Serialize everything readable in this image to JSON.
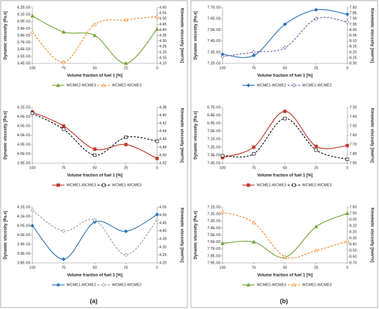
{
  "panel_labels": [
    "(a)",
    "(b)"
  ],
  "chart_data": [
    {
      "type": "line",
      "xlabel": "Volume fraction of fuel 1 [%]",
      "ylabel": "Dynamic viscosity [Pa.s]",
      "y2label": "Kinematic viscosity [mm²/s]",
      "categories": [
        "100",
        "75",
        "50",
        "25",
        "0"
      ],
      "ylim": [
        0.0034,
        0.0042
      ],
      "yticks": [
        {
          "value": 0.0034,
          "label": "3.4E-03"
        },
        {
          "value": 0.0035,
          "label": "3.5E-03"
        },
        {
          "value": 0.0036,
          "label": "3.6E-03"
        },
        {
          "value": 0.0037,
          "label": "3.7E-03"
        },
        {
          "value": 0.0038,
          "label": "3.8E-03"
        },
        {
          "value": 0.0039,
          "label": "3.9E-03"
        },
        {
          "value": 0.004,
          "label": "4.0E-03"
        },
        {
          "value": 0.0041,
          "label": "4.1E-03"
        },
        {
          "value": 0.0042,
          "label": "4.2E-03"
        }
      ],
      "y2lim": [
        4.1,
        4.6
      ],
      "y2ticks": [
        {
          "value": 4.1,
          "label": "4.10"
        },
        4.15,
        {
          "value": 4.2,
          "label": "4.20"
        },
        4.25,
        {
          "value": 4.3,
          "label": "4.30"
        },
        4.35,
        {
          "value": 4.4,
          "label": "4.40"
        },
        4.45,
        {
          "value": 4.5,
          "label": "4.50"
        },
        4.55,
        {
          "value": 4.6,
          "label": "4.60"
        }
      ],
      "series": [
        {
          "name": "WCME2-WCME3",
          "color": "#77a33a",
          "dash": false,
          "marker": "triangle",
          "filled": true,
          "values": [
            0.00408,
            0.00385,
            0.0038,
            0.0034,
            0.00389
          ]
        },
        {
          "name": "WCME2-WCME3",
          "color": "#f08a24",
          "dash": true,
          "marker": "triangle",
          "filled": false,
          "axis": "y2",
          "values": [
            4.38,
            4.11,
            4.45,
            4.49,
            4.52
          ]
        }
      ]
    },
    {
      "type": "line",
      "xlabel": "Volume fraction of fuel 1 [%]",
      "ylabel": "Dynamic viscosity [Pa.s]",
      "y2label": "Kinematic viscosity [mm²/s]",
      "categories": [
        "100",
        "75",
        "50",
        "25",
        "0"
      ],
      "ylim": [
        0.00394,
        0.00406
      ],
      "yticks": [
        {
          "value": 0.00394,
          "label": "3.9E-03"
        },
        {
          "value": 0.00396,
          "label": "4.0E-03"
        },
        {
          "value": 0.00398,
          "label": "4.0E-03"
        },
        {
          "value": 0.004,
          "label": "4.0E-03"
        },
        {
          "value": 0.00402,
          "label": "4.0E-03"
        },
        {
          "value": 0.00404,
          "label": "4.0E-03"
        },
        {
          "value": 0.00406,
          "label": "4.1E-03"
        }
      ],
      "y2lim": [
        4.52,
        4.38
      ],
      "y2ticks": [
        4.38,
        {
          "value": 4.4,
          "label": "4.40"
        },
        4.42,
        4.44,
        4.46,
        4.48,
        {
          "value": 4.5,
          "label": "4.50"
        },
        4.52
      ],
      "series": [
        {
          "name": "WCME1-WCME3",
          "color": "#c0392b",
          "dash": false,
          "marker": "square",
          "filled": true,
          "values": [
            0.00405,
            0.00402,
            0.00397,
            0.00398,
            0.00395
          ]
        },
        {
          "name": "WCME1-WCME3",
          "color": "#111111",
          "dash": true,
          "marker": "square",
          "filled": false,
          "axis": "y2",
          "values": [
            4.395,
            4.435,
            4.5,
            4.455,
            4.465
          ]
        }
      ]
    },
    {
      "type": "line",
      "xlabel": "Volume fraction of fuel 1 [%]",
      "ylabel": "Dynamic viscosity [Pa.s]",
      "y2label": "Kinematic viscosity [mm²/s]",
      "categories": [
        "100",
        "75",
        "50",
        "25",
        "0"
      ],
      "ylim": [
        0.00384,
        0.00414
      ],
      "yticks": [
        {
          "value": 0.00384,
          "label": "3.8E-03"
        },
        {
          "value": 0.00389,
          "label": "3.9E-03"
        },
        {
          "value": 0.00394,
          "label": "3.9E-03"
        },
        {
          "value": 0.00399,
          "label": "4.0E-03"
        },
        {
          "value": 0.00404,
          "label": "4.0E-03"
        },
        {
          "value": 0.00409,
          "label": "4.1E-03"
        },
        {
          "value": 0.00414,
          "label": "4.1E-03"
        }
      ],
      "y2lim": [
        4.2,
        4.55
      ],
      "y2ticks": [
        {
          "value": 4.2,
          "label": "4.20"
        },
        4.25,
        {
          "value": 4.3,
          "label": "4.30"
        },
        4.35,
        {
          "value": 4.4,
          "label": "4.40"
        },
        4.45,
        {
          "value": 4.5,
          "label": "4.50"
        },
        4.55
      ],
      "series": [
        {
          "name": "WCME1-WCME2",
          "color": "#2e75b6",
          "dash": false,
          "marker": "diamond",
          "filled": true,
          "values": [
            0.00404,
            0.00386,
            0.00406,
            0.00401,
            0.0041
          ]
        },
        {
          "name": "WCME1-WCME2",
          "color": "#999999",
          "dash": true,
          "marker": "diamond",
          "filled": false,
          "axis": "y2",
          "values": [
            4.53,
            4.4,
            4.47,
            4.25,
            4.47
          ]
        }
      ]
    },
    {
      "type": "line",
      "xlabel": "Volume fraction of fuel 1 [%]",
      "ylabel": "Dynamic viscosity [Pa.s]",
      "y2label": "Kinematic viscosity [mm²/s]",
      "categories": [
        "100",
        "75",
        "50",
        "25",
        "0"
      ],
      "ylim": [
        0.0072,
        0.0077
      ],
      "yticks": [
        {
          "value": 0.0072,
          "label": "7.2E-03"
        },
        {
          "value": 0.0073,
          "label": "7.3E-03"
        },
        {
          "value": 0.0074,
          "label": "7.4E-03"
        },
        {
          "value": 0.0075,
          "label": "7.5E-03"
        },
        {
          "value": 0.0076,
          "label": "7.6E-03"
        },
        {
          "value": 0.0077,
          "label": "7.7E-03"
        }
      ],
      "y2lim": [
        8.3,
        7.8
      ],
      "y2ticks": [
        {
          "value": 7.8,
          "label": "7.80"
        },
        7.85,
        {
          "value": 7.9,
          "label": "7.90"
        },
        7.95,
        {
          "value": 8,
          "label": "8.00"
        },
        8.05,
        {
          "value": 8.1,
          "label": "8.10"
        },
        8.15,
        {
          "value": 8.2,
          "label": "8.20"
        },
        8.25,
        {
          "value": 8.3,
          "label": "8.30"
        }
      ],
      "series": [
        {
          "name": "WCME1-WCME2",
          "color": "#2e75b6",
          "dash": false,
          "marker": "diamond",
          "filled": true,
          "values": [
            0.00728,
            0.00727,
            0.00755,
            0.00768,
            0.00764
          ]
        },
        {
          "name": "WCME1-WCME2",
          "color": "#7b5ea7",
          "dash": true,
          "marker": "diamond",
          "filled": false,
          "axis": "y2",
          "values": [
            8.24,
            8.2,
            8.16,
            7.9,
            7.93
          ]
        }
      ]
    },
    {
      "type": "line",
      "xlabel": "Volume fraction of fuel 1 [%]",
      "ylabel": "Dynamic viscosity [Pa.s]",
      "y2label": "Kinematic viscosity [mm²/s]",
      "categories": [
        "100",
        "75",
        "50",
        "25",
        "0"
      ],
      "ylim": [
        0.0074,
        0.0067
      ],
      "yticks": [
        {
          "value": 0.0067,
          "label": "6.7E-03"
        },
        {
          "value": 0.0068,
          "label": "6.8E-03"
        },
        {
          "value": 0.0069,
          "label": "6.9E-03"
        },
        {
          "value": 0.007,
          "label": "7.0E-03"
        },
        {
          "value": 0.0071,
          "label": "7.1E-03"
        },
        {
          "value": 0.0072,
          "label": "7.2E-03"
        },
        {
          "value": 0.0073,
          "label": "7.3E-03"
        },
        {
          "value": 0.0074,
          "label": "7.4E-03"
        }
      ],
      "y2lim": [
        7.9,
        7.3
      ],
      "y2ticks": [
        {
          "value": 7.3,
          "label": "7.30"
        },
        {
          "value": 7.4,
          "label": "7.40"
        },
        {
          "value": 7.5,
          "label": "7.50"
        },
        {
          "value": 7.6,
          "label": "7.60"
        },
        {
          "value": 7.7,
          "label": "7.70"
        },
        {
          "value": 7.8,
          "label": "7.80"
        },
        {
          "value": 7.9,
          "label": "7.90"
        }
      ],
      "series": [
        {
          "name": "WCME1-WCME3",
          "color": "#c0392b",
          "dash": false,
          "marker": "square",
          "filled": true,
          "values": [
            0.00733,
            0.0072,
            0.00675,
            0.00719,
            0.00718
          ]
        },
        {
          "name": "WCME1-WCME3",
          "color": "#111111",
          "dash": true,
          "marker": "square",
          "filled": false,
          "axis": "y2",
          "values": [
            7.82,
            7.8,
            7.42,
            7.76,
            7.86
          ]
        }
      ]
    },
    {
      "type": "line",
      "xlabel": "Volume fraction of fuel 1 [%]",
      "ylabel": "Dynamic viscosity [Pa.s]",
      "y2label": "Kinematic viscosity [mm²/s]",
      "categories": [
        "100",
        "75",
        "50",
        "25",
        "0"
      ],
      "ylim": [
        0.0079,
        0.0071
      ],
      "yticks": [
        {
          "value": 0.0071,
          "label": "7.1E-03"
        },
        {
          "value": 0.0072,
          "label": "7.2E-03"
        },
        {
          "value": 0.0073,
          "label": "7.3E-03"
        },
        {
          "value": 0.0074,
          "label": "7.4E-03"
        },
        {
          "value": 0.0075,
          "label": "7.5E-03"
        },
        {
          "value": 0.0076,
          "label": "7.6E-03"
        },
        {
          "value": 0.0077,
          "label": "7.7E-03"
        },
        {
          "value": 0.0078,
          "label": "7.8E-03"
        },
        {
          "value": 0.0079,
          "label": "7.9E-03"
        }
      ],
      "y2lim": [
        8.7,
        7.8
      ],
      "y2ticks": [
        {
          "value": 7.8,
          "label": "7.80"
        },
        {
          "value": 7.9,
          "label": "7.90"
        },
        {
          "value": 8,
          "label": "8.00"
        },
        {
          "value": 8.1,
          "label": "8.10"
        },
        {
          "value": 8.2,
          "label": "8.20"
        },
        {
          "value": 8.3,
          "label": "8.30"
        },
        {
          "value": 8.4,
          "label": "8.40"
        },
        {
          "value": 8.5,
          "label": "8.50"
        },
        {
          "value": 8.6,
          "label": "8.60"
        },
        {
          "value": 8.7,
          "label": "8.70"
        }
      ],
      "series": [
        {
          "name": "WCME2-WCME3",
          "color": "#77a33a",
          "dash": false,
          "marker": "triangle",
          "filled": true,
          "values": [
            0.00762,
            0.0076,
            0.00782,
            0.00738,
            0.00719
          ]
        },
        {
          "name": "WCME2-WCME3",
          "color": "#f08a24",
          "dash": true,
          "marker": "triangle",
          "filled": false,
          "axis": "y2",
          "values": [
            7.88,
            8.05,
            8.6,
            8.5,
            8.35
          ]
        }
      ]
    }
  ]
}
